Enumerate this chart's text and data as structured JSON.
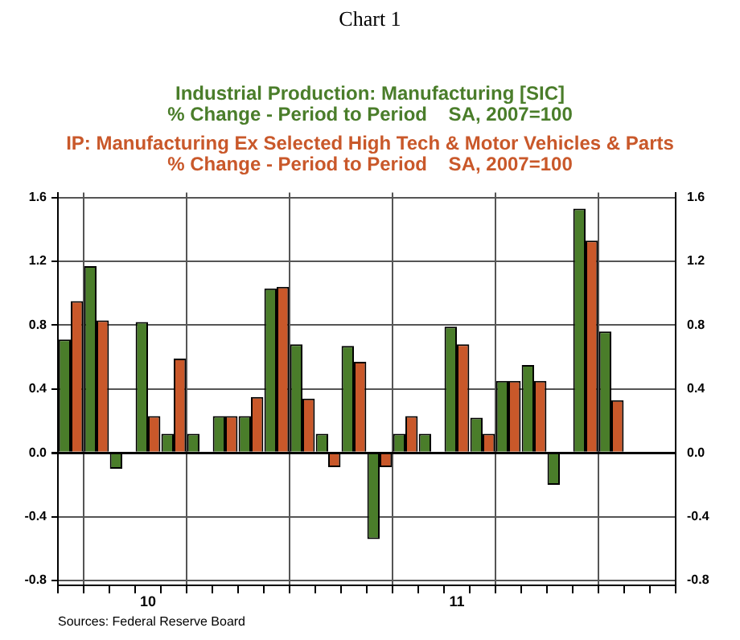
{
  "chart_data": {
    "type": "bar",
    "title": "Chart 1",
    "categories": [
      null,
      null,
      null,
      "10",
      null,
      null,
      null,
      null,
      null,
      null,
      null,
      null,
      null,
      null,
      null,
      "11",
      null,
      null,
      null,
      null,
      null,
      null,
      null,
      null
    ],
    "series": [
      {
        "name": "Industrial Production: Manufacturing [SIC]\n% Change - Period to Period    SA, 2007=100",
        "color": "#4a7d2a",
        "values": [
          0.71,
          1.17,
          -0.1,
          0.82,
          0.12,
          0.12,
          0.23,
          0.23,
          1.03,
          0.68,
          0.12,
          0.67,
          -0.54,
          0.12,
          0.12,
          0.79,
          0.22,
          0.45,
          0.55,
          -0.2,
          1.53,
          0.76,
          null,
          null
        ]
      },
      {
        "name": "IP: Manufacturing Ex Selected High Tech & Motor Vehicles & Parts\n% Change - Period to Period    SA, 2007=100",
        "color": "#c9582a",
        "values": [
          0.95,
          0.83,
          null,
          0.23,
          0.59,
          null,
          0.23,
          0.35,
          1.04,
          0.34,
          -0.09,
          0.57,
          -0.09,
          0.23,
          null,
          0.68,
          0.12,
          0.45,
          0.45,
          null,
          1.33,
          0.33,
          null,
          null
        ]
      }
    ],
    "ylim": [
      -0.83,
      1.63
    ],
    "yticks": [
      -0.8,
      -0.4,
      {
        "value": 0,
        "label": "0.0"
      },
      0.4,
      0.8,
      1.2,
      1.6
    ],
    "y2lim": [
      -0.83,
      1.63
    ],
    "y2ticks": [
      -0.8,
      -0.4,
      {
        "value": 0,
        "label": "0.0"
      },
      0.4,
      0.8,
      1.2,
      1.6
    ],
    "grid": true,
    "legend": "top",
    "annotations": [
      "Sources: Federal Reserve Board"
    ]
  }
}
